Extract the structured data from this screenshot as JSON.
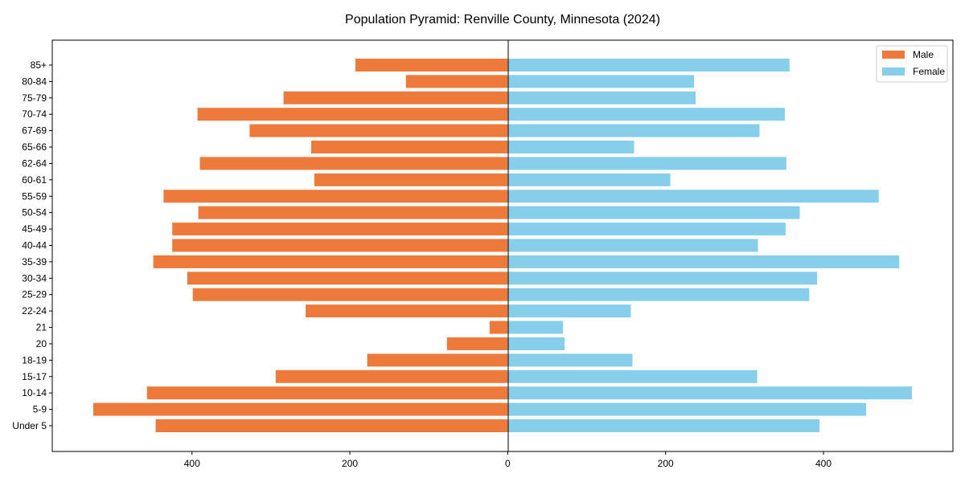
{
  "chart_data": {
    "type": "bar",
    "orientation": "horizontal",
    "title": "Population Pyramid: Renville County, Minnesota (2024)",
    "xlabel": "",
    "ylabel": "",
    "xlim": [
      -577,
      564
    ],
    "xticks": [
      -400,
      -200,
      0,
      200,
      400
    ],
    "xtick_labels": [
      "400",
      "200",
      "0",
      "200",
      "400"
    ],
    "legend_position": "top-right",
    "colors": {
      "Male": "#ED7A3A",
      "Female": "#87CEEB"
    },
    "categories": [
      "85+",
      "80-84",
      "75-79",
      "70-74",
      "67-69",
      "65-66",
      "62-64",
      "60-61",
      "55-59",
      "50-54",
      "45-49",
      "40-44",
      "35-39",
      "30-34",
      "25-29",
      "22-24",
      "21",
      "20",
      "18-19",
      "15-17",
      "10-14",
      "5-9",
      "Under 5"
    ],
    "series": [
      {
        "name": "Male",
        "values": [
          193,
          129,
          284,
          393,
          327,
          249,
          390,
          245,
          436,
          392,
          425,
          425,
          449,
          406,
          399,
          256,
          23,
          77,
          178,
          294,
          457,
          525,
          446
        ]
      },
      {
        "name": "Female",
        "values": [
          357,
          236,
          238,
          351,
          319,
          160,
          353,
          206,
          470,
          370,
          352,
          317,
          496,
          392,
          382,
          156,
          70,
          72,
          158,
          316,
          512,
          454,
          395
        ]
      }
    ]
  }
}
